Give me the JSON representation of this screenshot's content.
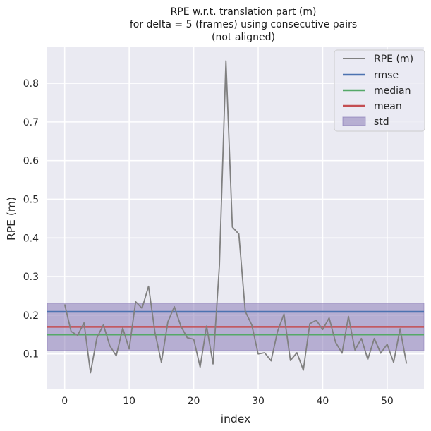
{
  "chart_data": {
    "type": "line",
    "title": [
      "RPE w.r.t. translation part (m)",
      "for delta = 5 (frames) using consecutive pairs",
      "(not aligned)"
    ],
    "xlabel": "index",
    "ylabel": "RPE (m)",
    "xlim": [
      -2.7,
      55.7
    ],
    "ylim": [
      0.01,
      0.895
    ],
    "xticks": [
      0,
      10,
      20,
      30,
      40,
      50
    ],
    "yticks": [
      0.1,
      0.2,
      0.3,
      0.4,
      0.5,
      0.6,
      0.7,
      0.8
    ],
    "grid": true,
    "legend_position": "top-right",
    "series": [
      {
        "name": "RPE (m)",
        "color": "#808080",
        "x": [
          0,
          1,
          2,
          3,
          4,
          5,
          6,
          7,
          8,
          9,
          10,
          11,
          12,
          13,
          14,
          15,
          16,
          17,
          18,
          19,
          20,
          21,
          22,
          23,
          24,
          25,
          26,
          27,
          28,
          29,
          30,
          31,
          32,
          33,
          34,
          35,
          36,
          37,
          38,
          39,
          40,
          41,
          42,
          43,
          44,
          45,
          46,
          47,
          48,
          49,
          50,
          51,
          52,
          53
        ],
        "values": [
          0.228,
          0.158,
          0.148,
          0.18,
          0.051,
          0.142,
          0.175,
          0.121,
          0.095,
          0.167,
          0.113,
          0.235,
          0.218,
          0.275,
          0.155,
          0.078,
          0.183,
          0.222,
          0.172,
          0.142,
          0.138,
          0.066,
          0.172,
          0.074,
          0.33,
          0.858,
          0.428,
          0.41,
          0.21,
          0.175,
          0.1,
          0.103,
          0.082,
          0.158,
          0.203,
          0.083,
          0.103,
          0.058,
          0.178,
          0.187,
          0.163,
          0.193,
          0.13,
          0.102,
          0.197,
          0.11,
          0.14,
          0.086,
          0.14,
          0.102,
          0.125,
          0.078,
          0.165,
          0.075
        ]
      }
    ],
    "stats": {
      "rmse": {
        "name": "rmse",
        "value": 0.209,
        "color": "#4c72b0"
      },
      "median": {
        "name": "median",
        "value": 0.15,
        "color": "#55a868"
      },
      "mean": {
        "name": "mean",
        "value": 0.17,
        "color": "#c44e52"
      },
      "std": {
        "name": "std",
        "lower": 0.109,
        "upper": 0.231,
        "color": "#8172b2"
      }
    },
    "legend": [
      "RPE (m)",
      "rmse",
      "median",
      "mean",
      "std"
    ],
    "background": "#eaeaf2"
  }
}
